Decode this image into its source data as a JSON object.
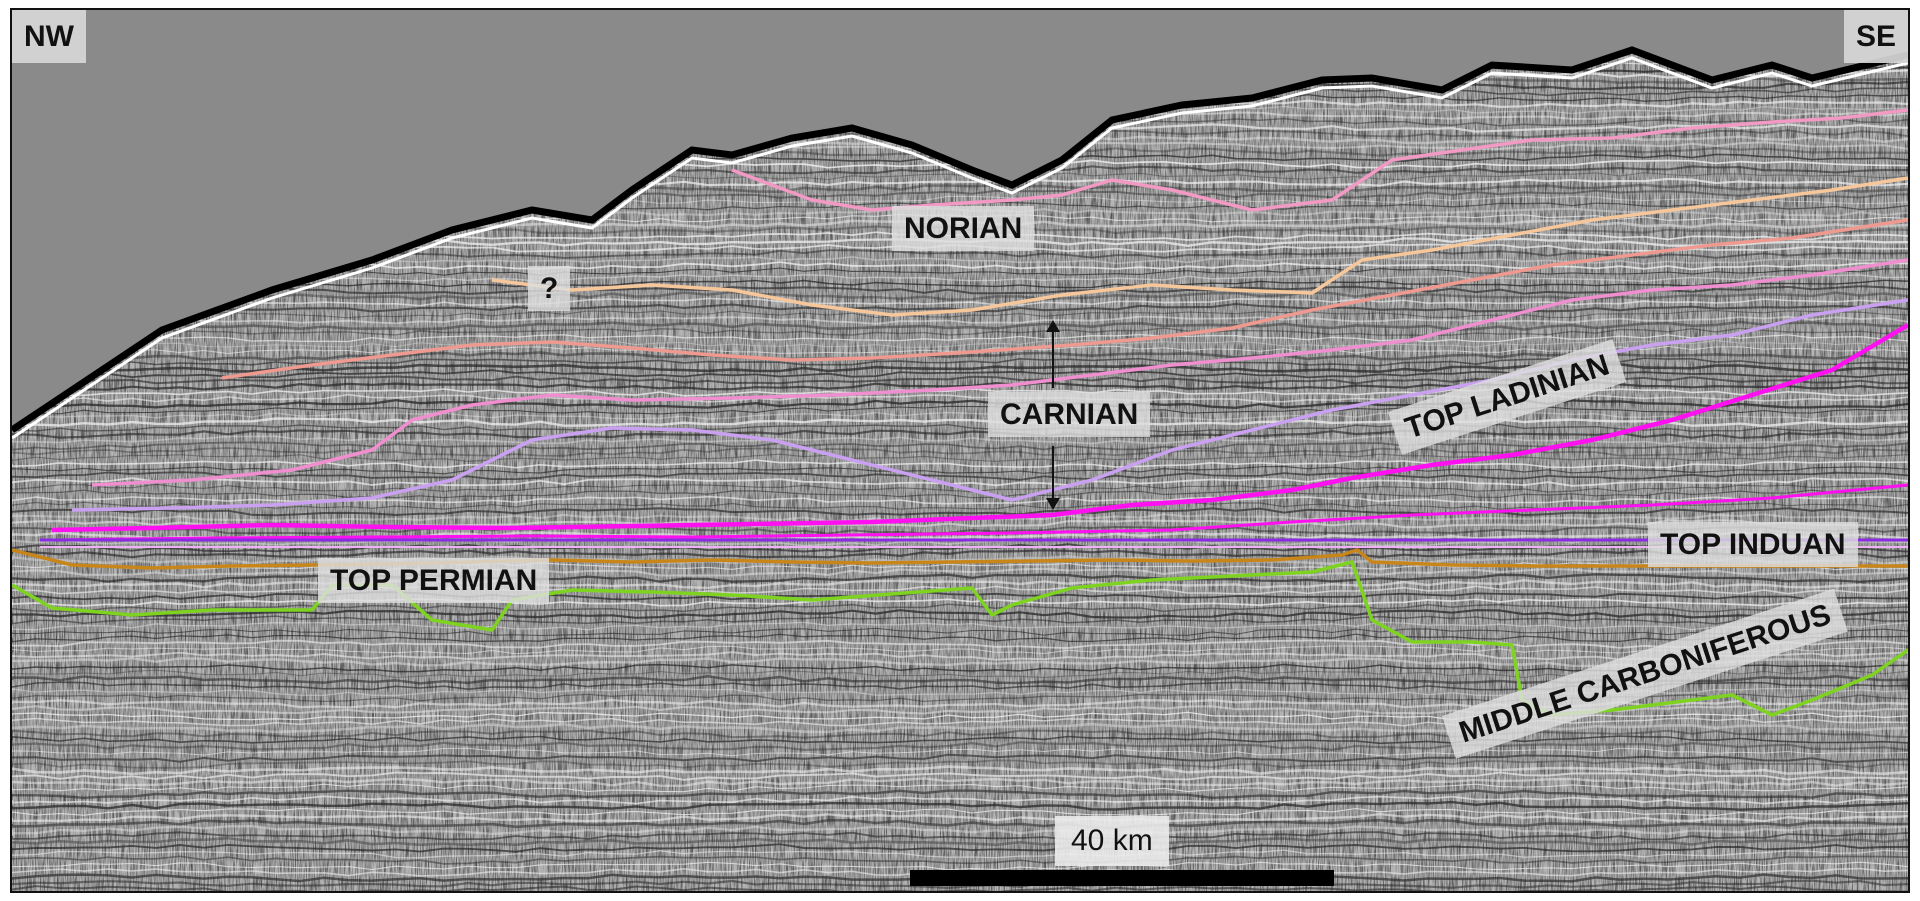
{
  "orientation": {
    "left": "NW",
    "right": "SE"
  },
  "labels": {
    "norian": "NORIAN",
    "question": "?",
    "carnian": "CARNIAN",
    "top_ladinian": "TOP LADINIAN",
    "top_induan": "TOP INDUAN",
    "top_permian": "TOP PERMIAN",
    "middle_carboniferous": "MIDDLE CARBONIFEROUS"
  },
  "scale": {
    "label": "40 km"
  },
  "colors": {
    "background_gray": "#8a8a8a",
    "norian_horizon": "#f29ac4",
    "peach_horizon": "#f5c79a",
    "salmon_horizon": "#ef9a90",
    "pink_horizon": "#f08fd0",
    "lavender_horizon": "#c9a1f0",
    "magenta_horizon": "#ff10f0",
    "induan_horizon": "#8a2be2",
    "permian_horizon": "#c8861a",
    "carboniferous_horizon": "#7ed321"
  }
}
